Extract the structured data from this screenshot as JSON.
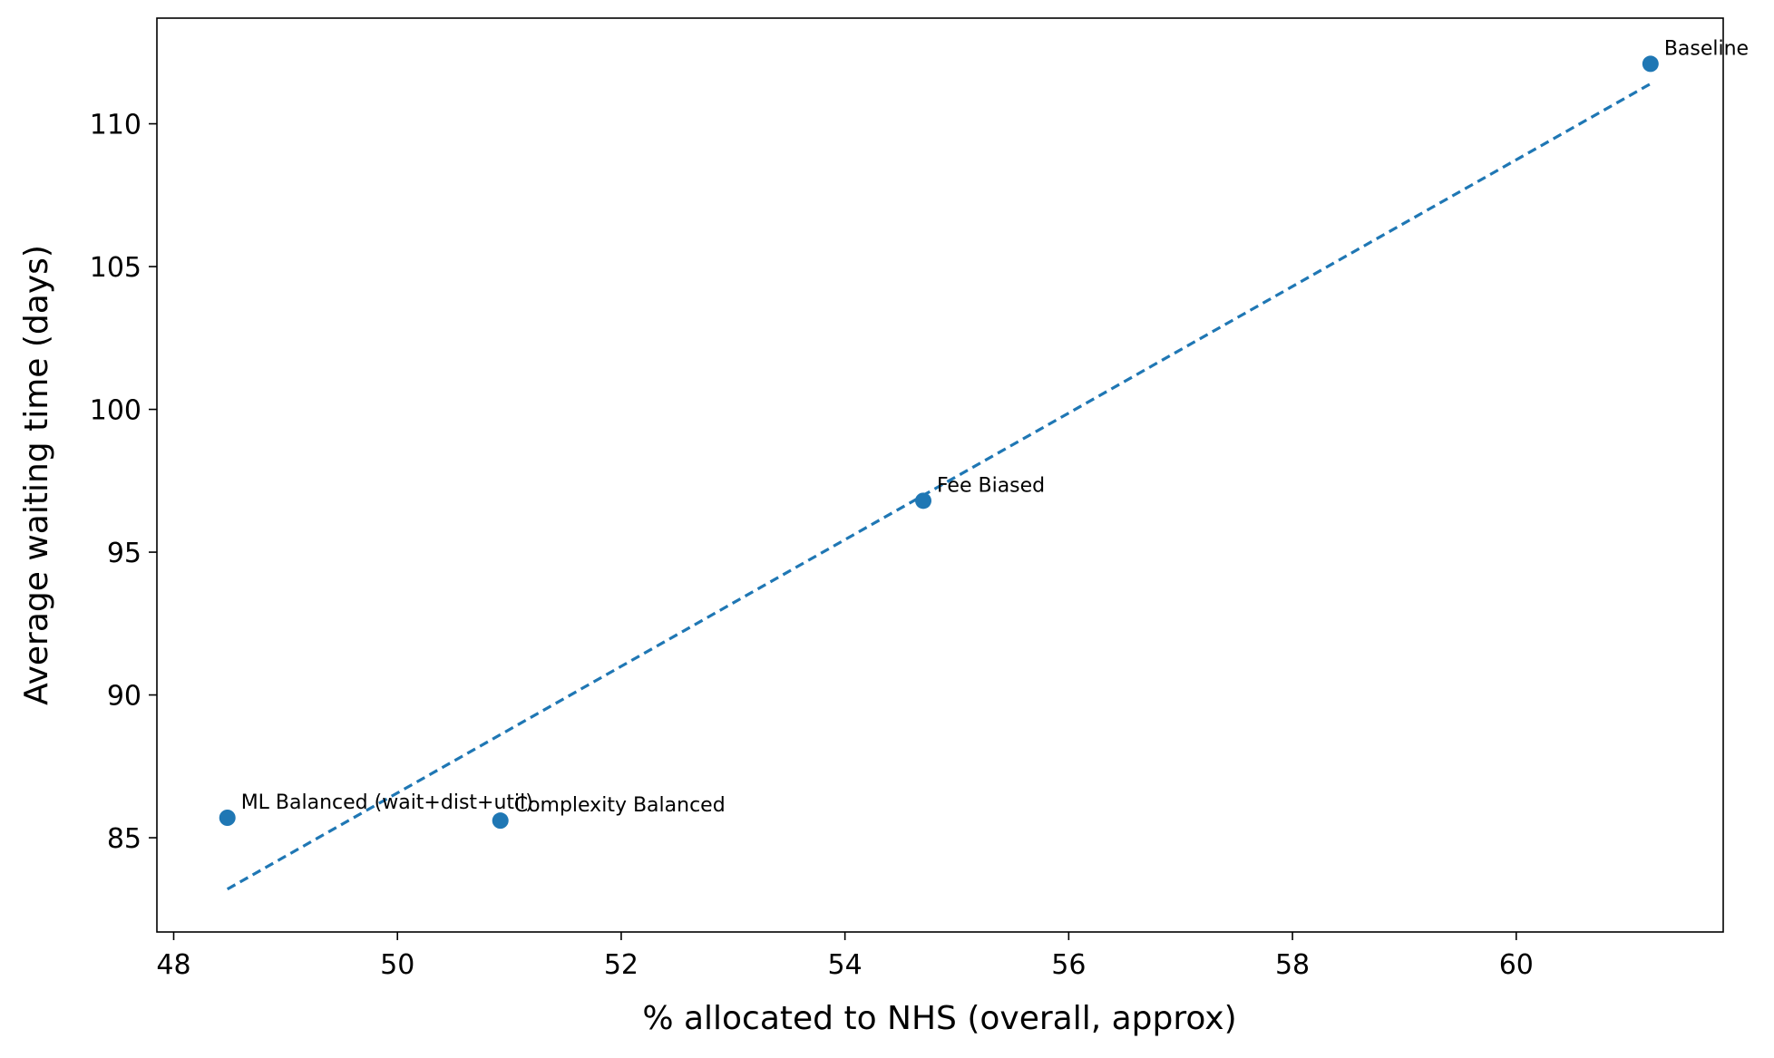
{
  "chart_data": {
    "type": "scatter",
    "title": "",
    "xlabel": "% allocated to NHS (overall, approx)",
    "ylabel": "Average waiting time (days)",
    "xlim": [
      47.85,
      61.85
    ],
    "ylim": [
      81.7,
      113.7
    ],
    "xticks": [
      48,
      50,
      52,
      54,
      56,
      58,
      60
    ],
    "yticks": [
      85,
      90,
      95,
      100,
      105,
      110
    ],
    "grid": false,
    "legend": "none",
    "colors": {
      "point": "#1f77b4",
      "trendline": "#1f77b4",
      "frame": "#000000"
    },
    "points": [
      {
        "label": "ML Balanced (wait+dist+util)",
        "x": 48.48,
        "y": 85.7
      },
      {
        "label": "Complexity Balanced",
        "x": 50.92,
        "y": 85.6
      },
      {
        "label": "Fee Biased",
        "x": 54.7,
        "y": 96.8
      },
      {
        "label": "Baseline",
        "x": 61.2,
        "y": 112.1
      }
    ],
    "trendline": {
      "style": "dashed",
      "x": [
        48.48,
        61.2
      ],
      "y": [
        83.2,
        111.4
      ]
    }
  }
}
